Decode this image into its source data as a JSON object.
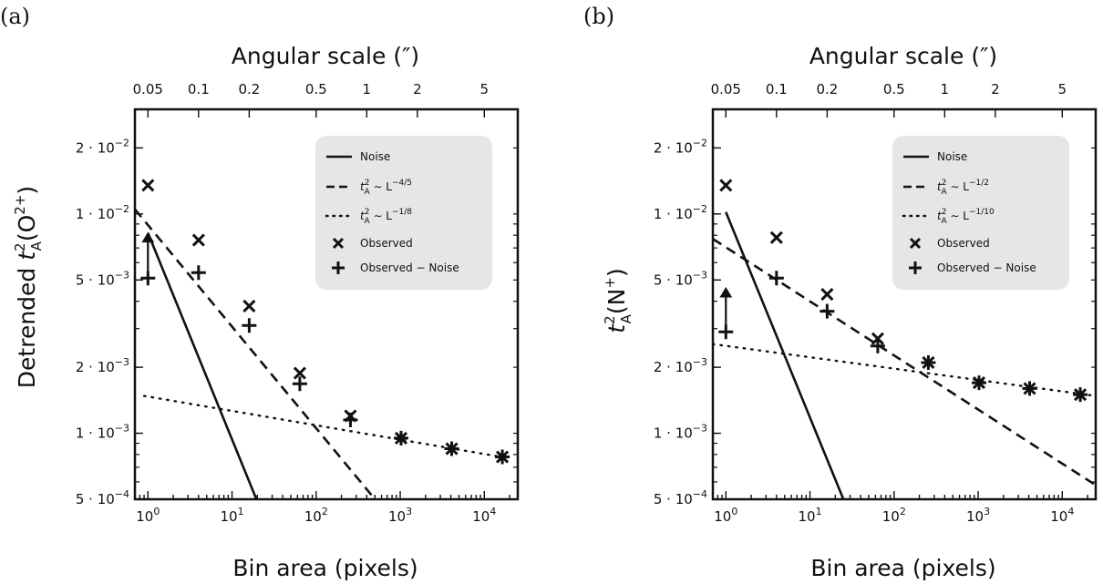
{
  "chart_data": [
    {
      "panel_label": "(a)",
      "type": "scatter",
      "title": "",
      "top_axis_title": "Angular scale (″)",
      "top_ticks": [
        "0.05",
        "0.1",
        "0.2",
        "0.5",
        "1",
        "2",
        "5"
      ],
      "top_tick_values": [
        0.05,
        0.1,
        0.2,
        0.5,
        1,
        2,
        5
      ],
      "xlabel": "Bin area (pixels)",
      "ylabel_prefix": "Detrended ",
      "ylabel_var": "t",
      "ylabel_sup": "2",
      "ylabel_sub": "A",
      "ylabel_arg": "(O",
      "ylabel_ion_sup": "2+",
      "ylabel_close": ")",
      "xlim": [
        0.7,
        25000
      ],
      "ylim": [
        0.0005,
        0.03
      ],
      "x_ticks": [
        {
          "value": 1,
          "base": "10",
          "exp": "0"
        },
        {
          "value": 10,
          "base": "10",
          "exp": "1"
        },
        {
          "value": 100,
          "base": "10",
          "exp": "2"
        },
        {
          "value": 1000,
          "base": "10",
          "exp": "3"
        },
        {
          "value": 10000,
          "base": "10",
          "exp": "4"
        }
      ],
      "y_ticks": [
        {
          "value": 0.02,
          "mantissa": "2 · 10",
          "exp": "−2"
        },
        {
          "value": 0.01,
          "mantissa": "1 · 10",
          "exp": "−2"
        },
        {
          "value": 0.005,
          "mantissa": "5 · 10",
          "exp": "−3"
        },
        {
          "value": 0.002,
          "mantissa": "2 · 10",
          "exp": "−3"
        },
        {
          "value": 0.001,
          "mantissa": "1 · 10",
          "exp": "−3"
        },
        {
          "value": 0.0005,
          "mantissa": "5 · 10",
          "exp": "−4"
        }
      ],
      "legend": {
        "noise": "Noise",
        "fit1_base": "t",
        "fit1_sup": "2",
        "fit1_sub": "A",
        "fit1_rel": " ∼ L",
        "fit1_exp": "−4/5",
        "fit2_base": "t",
        "fit2_sup": "2",
        "fit2_sub": "A",
        "fit2_rel": " ∼ L",
        "fit2_exp": "−1/8",
        "observed": "Observed",
        "observed_minus_noise": "Observed − Noise"
      },
      "noise_line": {
        "x": [
          1.0,
          19.5
        ],
        "y": [
          0.0082,
          0.0005
        ]
      },
      "fit_steep_dashed": {
        "x": [
          0.7,
          600
        ],
        "y": [
          0.0105,
          0.00046
        ]
      },
      "fit_shallow_dotted": {
        "x": [
          0.9,
          16000
        ],
        "y": [
          0.00148,
          0.00078
        ]
      },
      "observed": {
        "x": [
          1,
          4,
          16,
          64,
          256,
          1024,
          4096,
          16384
        ],
        "y": [
          0.0135,
          0.0076,
          0.0038,
          0.00188,
          0.0012,
          0.00095,
          0.00085,
          0.00078
        ]
      },
      "observed_minus_noise": {
        "x": [
          1,
          4,
          16,
          64,
          256,
          1024,
          4096,
          16384
        ],
        "y": [
          0.0051,
          0.0054,
          0.0031,
          0.00168,
          0.00115,
          0.00095,
          0.00085,
          0.00078
        ]
      },
      "lower_limit_arrow": {
        "x": 1,
        "y_from": 0.0055,
        "y_to": 0.0082
      }
    },
    {
      "panel_label": "(b)",
      "type": "scatter",
      "title": "",
      "top_axis_title": "Angular scale (″)",
      "top_ticks": [
        "0.05",
        "0.1",
        "0.2",
        "0.5",
        "1",
        "2",
        "5"
      ],
      "top_tick_values": [
        0.05,
        0.1,
        0.2,
        0.5,
        1,
        2,
        5
      ],
      "xlabel": "Bin area (pixels)",
      "ylabel_prefix": "",
      "ylabel_var": "t",
      "ylabel_sup": "2",
      "ylabel_sub": "A",
      "ylabel_arg": "(N",
      "ylabel_ion_sup": "+",
      "ylabel_close": ")",
      "xlim": [
        0.7,
        25000
      ],
      "ylim": [
        0.0005,
        0.03
      ],
      "x_ticks": [
        {
          "value": 1,
          "base": "10",
          "exp": "0"
        },
        {
          "value": 10,
          "base": "10",
          "exp": "1"
        },
        {
          "value": 100,
          "base": "10",
          "exp": "2"
        },
        {
          "value": 1000,
          "base": "10",
          "exp": "3"
        },
        {
          "value": 10000,
          "base": "10",
          "exp": "4"
        }
      ],
      "y_ticks": [
        {
          "value": 0.02,
          "mantissa": "2 · 10",
          "exp": "−2"
        },
        {
          "value": 0.01,
          "mantissa": "1 · 10",
          "exp": "−2"
        },
        {
          "value": 0.005,
          "mantissa": "5 · 10",
          "exp": "−3"
        },
        {
          "value": 0.002,
          "mantissa": "2 · 10",
          "exp": "−3"
        },
        {
          "value": 0.001,
          "mantissa": "1 · 10",
          "exp": "−3"
        },
        {
          "value": 0.0005,
          "mantissa": "5 · 10",
          "exp": "−4"
        }
      ],
      "legend": {
        "noise": "Noise",
        "fit1_base": "t",
        "fit1_sup": "2",
        "fit1_sub": "A",
        "fit1_rel": " ∼ L",
        "fit1_exp": "−1/2",
        "fit2_base": "t",
        "fit2_sup": "2",
        "fit2_sub": "A",
        "fit2_rel": " ∼ L",
        "fit2_exp": "−1/10",
        "observed": "Observed",
        "observed_minus_noise": "Observed − Noise"
      },
      "noise_line": {
        "x": [
          1.0,
          25
        ],
        "y": [
          0.0102,
          0.0005
        ]
      },
      "fit_steep_dashed": {
        "x": [
          0.7,
          25000
        ],
        "y": [
          0.0077,
          0.00058
        ]
      },
      "fit_shallow_dotted": {
        "x": [
          0.7,
          25000
        ],
        "y": [
          0.00255,
          0.00148
        ]
      },
      "observed": {
        "x": [
          1,
          4,
          16,
          64,
          256,
          1024,
          4096,
          16384
        ],
        "y": [
          0.0135,
          0.0078,
          0.0043,
          0.0027,
          0.0021,
          0.0017,
          0.0016,
          0.0015
        ]
      },
      "observed_minus_noise": {
        "x": [
          1,
          4,
          16,
          64,
          256,
          1024,
          4096,
          16384
        ],
        "y": [
          0.0029,
          0.0051,
          0.0036,
          0.0025,
          0.0021,
          0.0017,
          0.0016,
          0.0015
        ]
      },
      "lower_limit_arrow": {
        "x": 1,
        "y_from": 0.0031,
        "y_to": 0.0046
      }
    }
  ]
}
